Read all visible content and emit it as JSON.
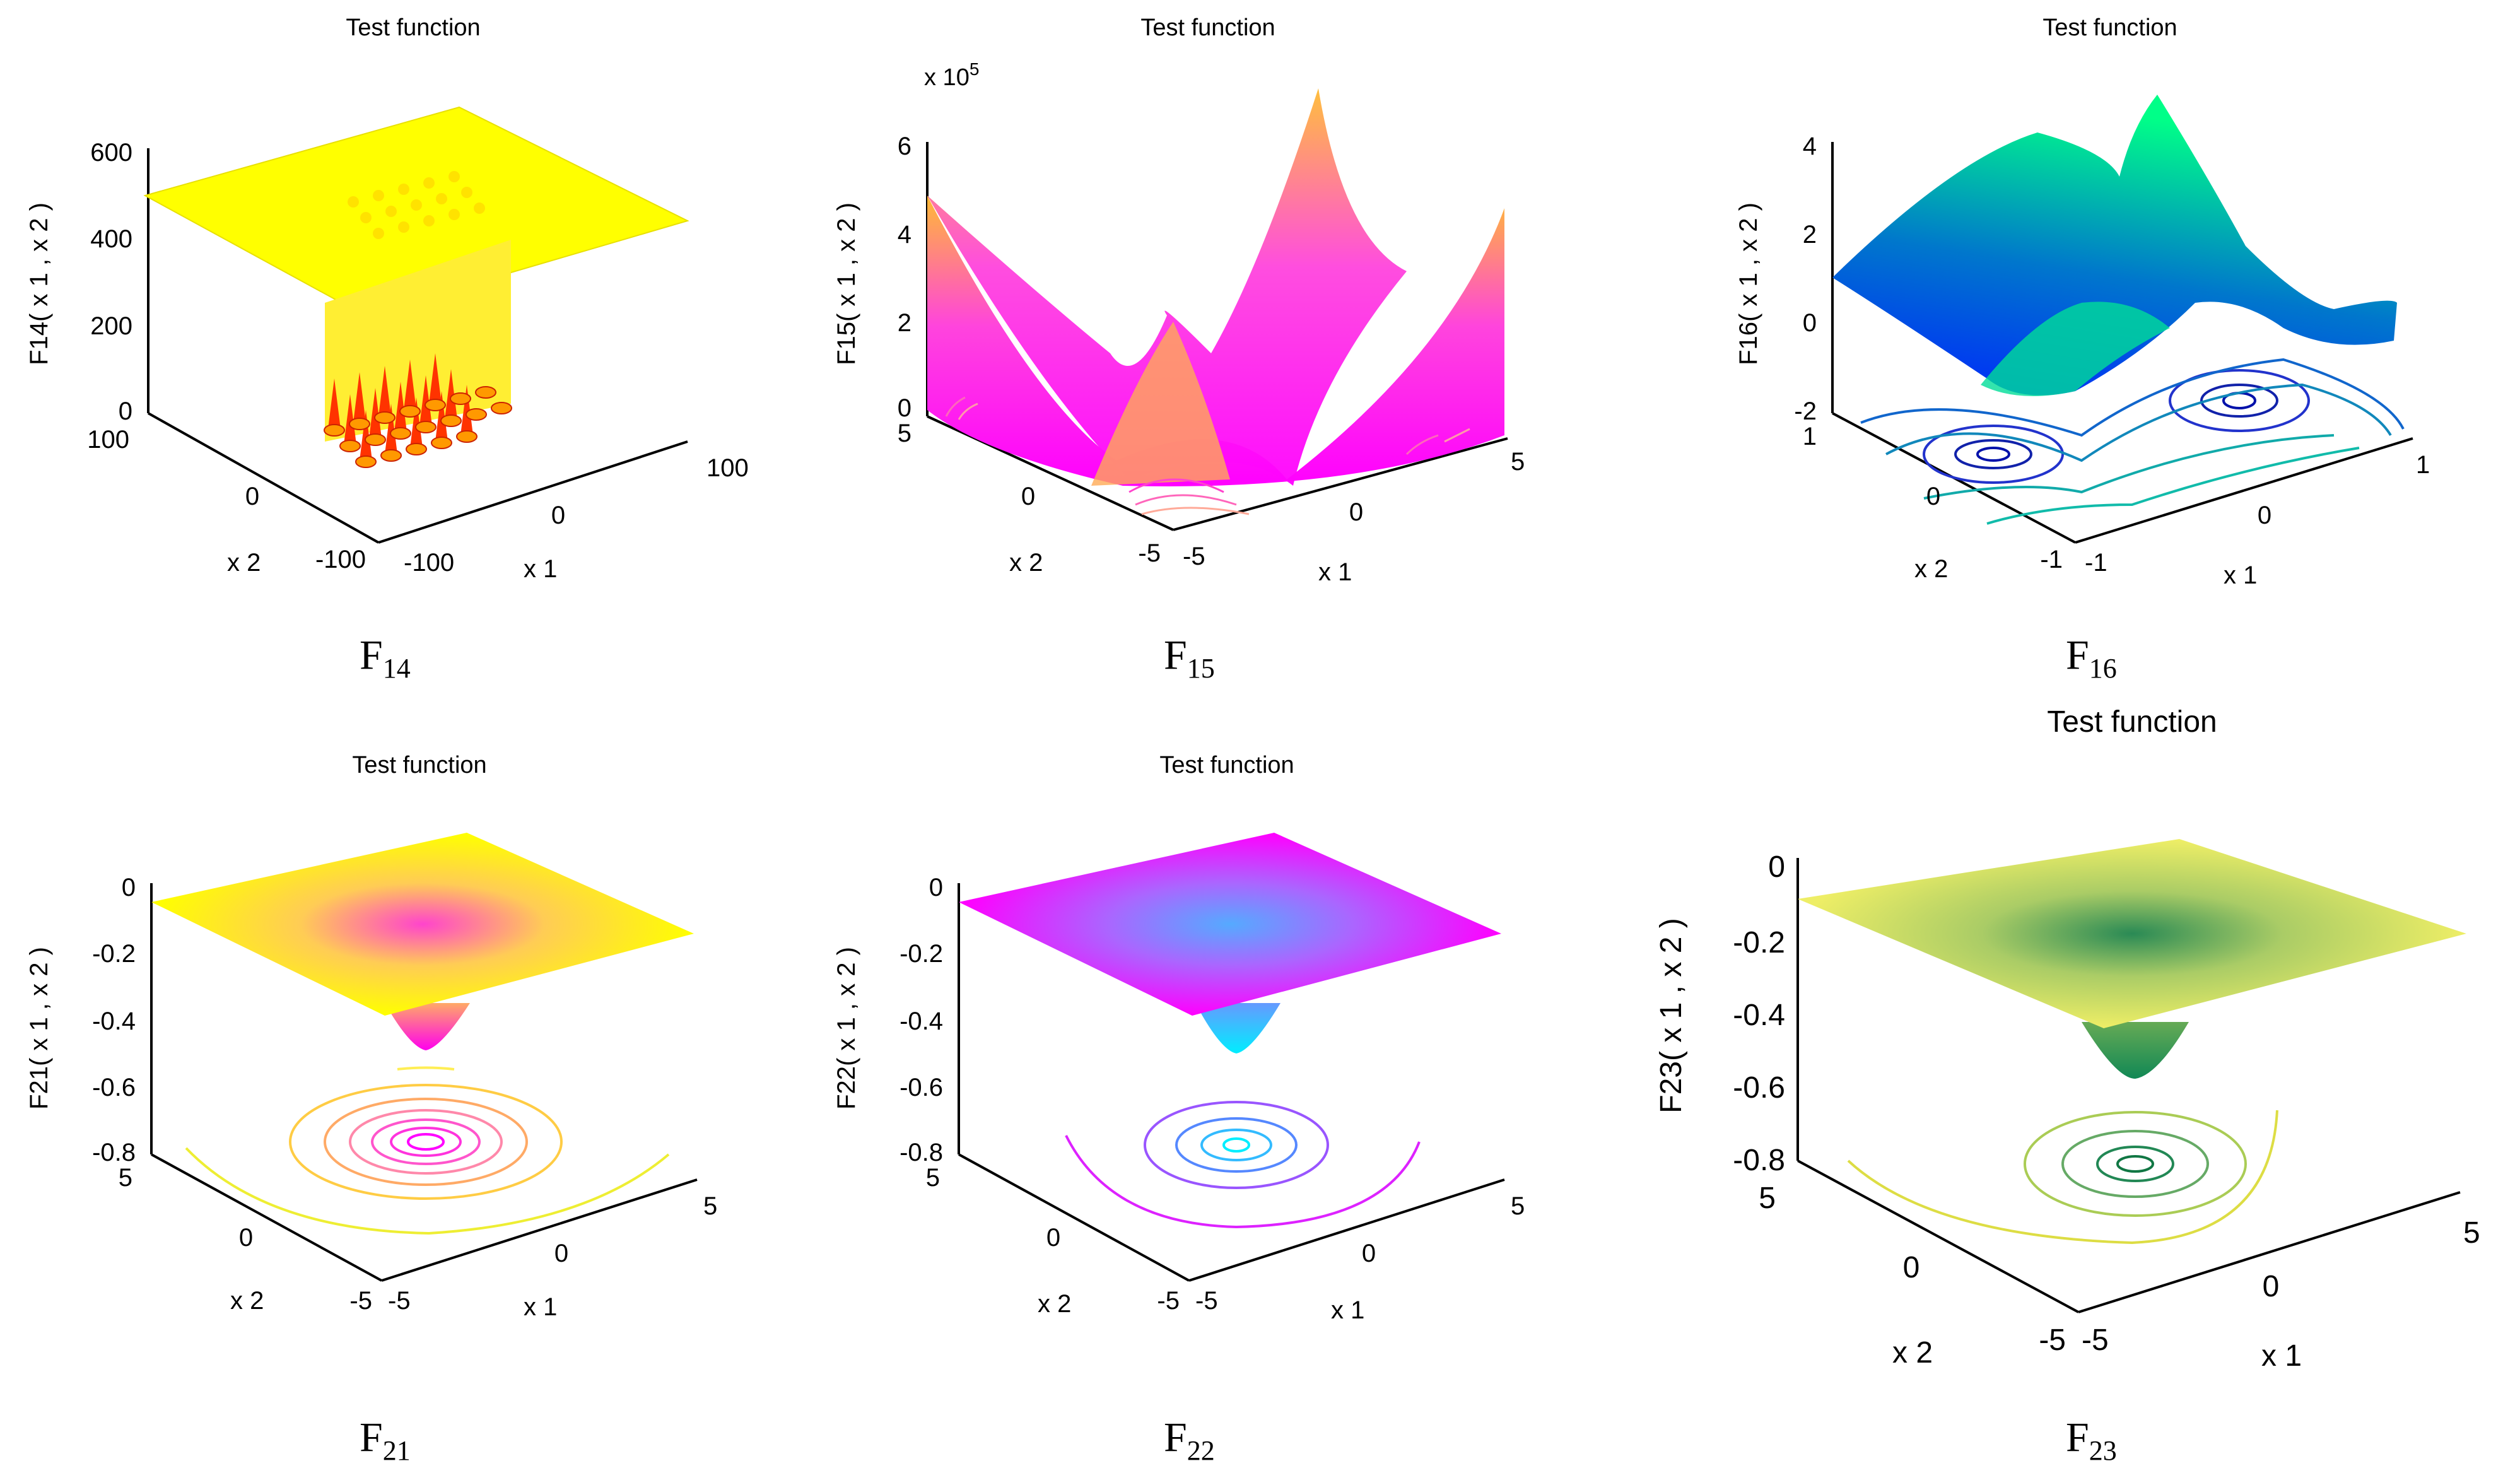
{
  "chart_data": [
    {
      "id": "F14",
      "type": "surface3d",
      "title": "Test function",
      "caption_main": "F",
      "caption_sub": "14",
      "zlabel": "F14( x 1 , x 2 )",
      "xlabel": "x 1",
      "ylabel": "x 2",
      "xticks": [
        "-100",
        "0",
        "100"
      ],
      "yticks": [
        "-100",
        "0",
        "100"
      ],
      "zticks": [
        "0",
        "200",
        "400",
        "600"
      ],
      "zlim": [
        0,
        600
      ],
      "surface_color": "#ffff00",
      "spike_color": "#ff3300",
      "description_value": "Shekel's Foxholes: flat plateau ~500 with 25 foxhole minima in a 5x5 grid"
    },
    {
      "id": "F15",
      "type": "surface3d",
      "title": "Test function",
      "caption_main": "F",
      "caption_sub": "15",
      "zlabel": "F15( x 1 , x 2 )",
      "xlabel": "x 1",
      "ylabel": "x 2",
      "xticks": [
        "-5",
        "0",
        "5"
      ],
      "yticks": [
        "-5",
        "0",
        "5"
      ],
      "zticks": [
        "0",
        "2",
        "4",
        "6"
      ],
      "z_exponent_base": "x 10",
      "z_exponent_power": "5",
      "zlim": [
        0,
        6
      ],
      "colors": [
        "#ff00ff",
        "#ffff00"
      ]
    },
    {
      "id": "F16",
      "type": "surface3d",
      "title": "Test function",
      "caption_main": "F",
      "caption_sub": "16",
      "zlabel": "F16( x 1 , x 2 )",
      "xlabel": "x 1",
      "ylabel": "x 2",
      "xticks": [
        "-1",
        "0",
        "1"
      ],
      "yticks": [
        "-1",
        "0",
        "1"
      ],
      "zticks": [
        "-2",
        "0",
        "2",
        "4"
      ],
      "zlim": [
        -2,
        4
      ],
      "colors": [
        "#0000ff",
        "#00ff80"
      ]
    },
    {
      "id": "F21",
      "type": "surface3d",
      "title": "Test function",
      "caption_main": "F",
      "caption_sub": "21",
      "zlabel": "F21( x 1 , x 2 )",
      "xlabel": "x 1",
      "ylabel": "x 2",
      "xticks": [
        "-5",
        "0",
        "5"
      ],
      "yticks": [
        "-5",
        "0",
        "5"
      ],
      "zticks": [
        "-0.8",
        "-0.6",
        "-0.4",
        "-0.2",
        "0"
      ],
      "zlim": [
        -0.8,
        0
      ],
      "colors": [
        "#ff00ff",
        "#ffff00"
      ]
    },
    {
      "id": "F22",
      "type": "surface3d",
      "title": "Test function",
      "caption_main": "F",
      "caption_sub": "22",
      "zlabel": "F22( x 1 , x 2 )",
      "xlabel": "x 1",
      "ylabel": "x 2",
      "xticks": [
        "-5",
        "0",
        "5"
      ],
      "yticks": [
        "-5",
        "0",
        "5"
      ],
      "zticks": [
        "-0.8",
        "-0.6",
        "-0.4",
        "-0.2",
        "0"
      ],
      "zlim": [
        -0.8,
        0
      ],
      "colors": [
        "#00ffff",
        "#ff00ff"
      ]
    },
    {
      "id": "F23",
      "type": "surface3d",
      "title": "Test function",
      "caption_main": "F",
      "caption_sub": "23",
      "zlabel": "F23( x 1 , x 2 )",
      "xlabel": "x 1",
      "ylabel": "x 2",
      "xticks": [
        "-5",
        "0",
        "5"
      ],
      "yticks": [
        "-5",
        "0",
        "5"
      ],
      "zticks": [
        "-0.8",
        "-0.6",
        "-0.4",
        "-0.2",
        "0"
      ],
      "zlim": [
        -0.8,
        0
      ],
      "colors": [
        "#1e8050",
        "#ffff66"
      ]
    }
  ]
}
